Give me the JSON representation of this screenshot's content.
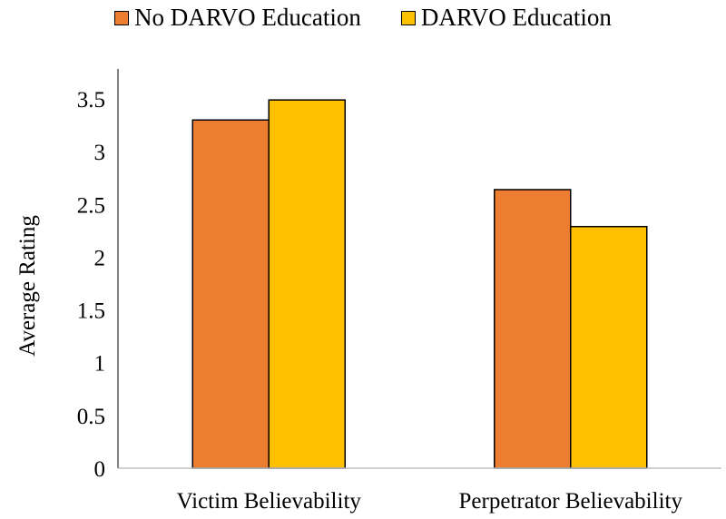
{
  "chart_data": {
    "type": "bar",
    "categories": [
      "Victim Believability",
      "Perpetrator Believability"
    ],
    "series": [
      {
        "name": "No DARVO Education",
        "color": "#ED7D31",
        "values": [
          3.3,
          2.64
        ]
      },
      {
        "name": "DARVO Education",
        "color": "#FFC000",
        "values": [
          3.49,
          2.29
        ]
      }
    ],
    "title": "",
    "xlabel": "",
    "ylabel": "Average Rating",
    "ylim": [
      0,
      3.5
    ],
    "yticks": [
      "0",
      "0.5",
      "1",
      "1.5",
      "2",
      "2.5",
      "3",
      "3.5"
    ],
    "grid": false,
    "legend_position": "top"
  }
}
